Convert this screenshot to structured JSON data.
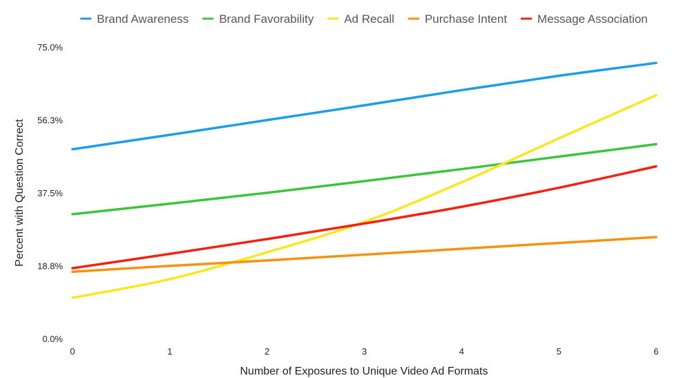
{
  "chart_data": {
    "type": "line",
    "title": "",
    "xlabel": "Number of Exposures to Unique Video Ad Formats",
    "ylabel": "Percent with Question Correct",
    "x": [
      0,
      1,
      2,
      3,
      4,
      5,
      6
    ],
    "xticks": [
      "0",
      "1",
      "2",
      "3",
      "4",
      "5",
      "6"
    ],
    "xlim": [
      0,
      6
    ],
    "ylim": [
      0,
      75
    ],
    "yticks": [
      0,
      18.75,
      37.5,
      56.25,
      75
    ],
    "yticklabels": [
      "0.0%",
      "18.8%",
      "37.5%",
      "56.3%",
      "75.0%"
    ],
    "grid": false,
    "legend_position": "top",
    "series": [
      {
        "name": "Brand Awareness",
        "color": "#1a9ee8",
        "values": [
          48.7,
          52.4,
          56.2,
          60.0,
          63.9,
          67.6,
          70.9
        ]
      },
      {
        "name": "Brand Favorability",
        "color": "#3cc43c",
        "values": [
          32.0,
          34.7,
          37.5,
          40.5,
          43.6,
          46.8,
          50.0
        ]
      },
      {
        "name": "Ad Recall",
        "color": "#f8e81c",
        "values": [
          10.5,
          15.3,
          22.2,
          30.0,
          40.2,
          51.5,
          62.6
        ]
      },
      {
        "name": "Purchase Intent",
        "color": "#f7920e",
        "values": [
          17.2,
          18.7,
          20.1,
          21.6,
          23.1,
          24.6,
          26.1
        ]
      },
      {
        "name": "Message Association",
        "color": "#f42010",
        "values": [
          18.1,
          21.8,
          25.6,
          29.6,
          33.9,
          38.8,
          44.3
        ]
      }
    ]
  }
}
